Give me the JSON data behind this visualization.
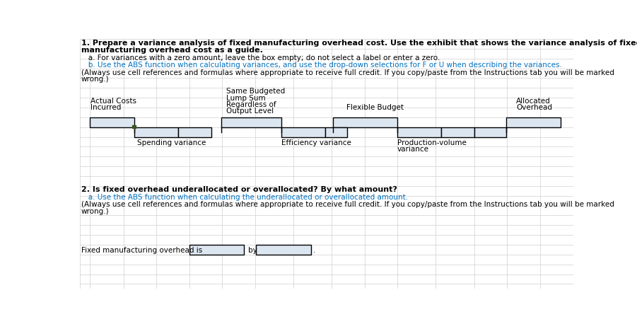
{
  "title_line1": "1. Prepare a variance analysis of fixed manufacturing overhead cost. Use the exhibit that shows the variance analysis of fixed",
  "title_line2": "manufacturing overhead cost as a guide.",
  "instr_a": "   a. For variances with a zero amount, leave the box empty; do not select a label or enter a zero.",
  "instr_b": "   b. Use the ABS function when calculating variances, and use the drop-down selections for F or U when describing the variances.",
  "instr_c": "(Always use cell references and formulas where appropriate to receive full credit. If you copy/paste from the Instructions tab you will be marked",
  "instr_d": "wrong.)",
  "col_actual_1": "Actual Costs",
  "col_actual_2": "Incurred",
  "col_budget_1": "Same Budgeted",
  "col_budget_2": "Lump Sum",
  "col_budget_3": "Regardless of",
  "col_budget_4": "Output Level",
  "col_flexible": "Flexible Budget",
  "col_alloc_1": "Allocated",
  "col_alloc_2": "Overhead",
  "var1": "Spending variance",
  "var2": "Efficiency variance",
  "var3_1": "Production-volume",
  "var3_2": "variance",
  "sec2_title": "2. Is fixed overhead underallocated or overallocated? By what amount?",
  "sec2_a": "   a. Use the ABS function when calculating the underallocated or overallocated amount.",
  "sec2_c": "(Always use cell references and formulas where appropriate to receive full credit. If you copy/paste from the Instructions tab you will be marked",
  "sec2_d": "wrong.)",
  "bottom_label": "Fixed manufacturing overhead is",
  "by_text": "by",
  "period": ".",
  "bg": "#ffffff",
  "cell_fill": "#dce6f1",
  "cell_border": "#000000",
  "grid_color": "#d0d0d0",
  "col_black": "#000000",
  "col_blue": "#0070c0",
  "col_red": "#c00000",
  "col_green_dark": "#375623",
  "fs_title": 8.0,
  "fs_body": 7.5
}
